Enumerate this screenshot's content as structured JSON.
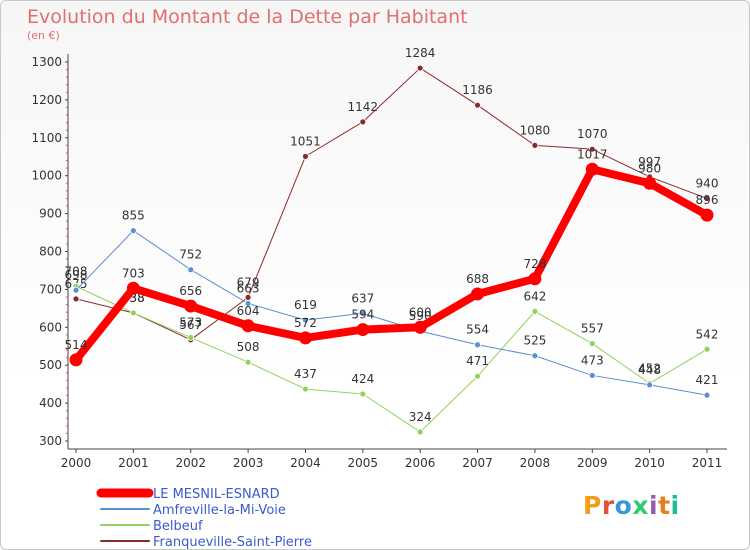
{
  "header": {
    "title": "Evolution du Montant de la Dette par Habitant",
    "subtitle": "(en €)"
  },
  "logo": {
    "text": "Proxiti",
    "colors": [
      "#f39c12",
      "#e74c3c",
      "#3498db",
      "#2ecc71",
      "#9b59b6",
      "#e67e22",
      "#1abc9c"
    ]
  },
  "chart_data": {
    "type": "line",
    "title": "Evolution du Montant de la Dette par Habitant",
    "subtitle": "(en €)",
    "xlabel": "",
    "ylabel": "",
    "x": [
      "2000",
      "2001",
      "2002",
      "2003",
      "2004",
      "2005",
      "2006",
      "2007",
      "2008",
      "2009",
      "2010",
      "2011"
    ],
    "ylim": [
      300,
      1300
    ],
    "yticks": [
      300,
      400,
      500,
      600,
      700,
      800,
      900,
      1000,
      1100,
      1200,
      1300
    ],
    "grid": false,
    "legend_position": "bottom-left",
    "series": [
      {
        "name": "Franqueville-Saint-Pierre",
        "color": "#8b2a2a",
        "width": 1,
        "point_labels": true,
        "values": [
          675,
          638,
          567,
          679,
          1051,
          1142,
          1284,
          1186,
          1080,
          1070,
          997,
          940
        ],
        "labels": [
          "675",
          "638",
          "567",
          "679",
          "1051",
          "1142",
          "1284",
          "1186",
          "1080",
          "1070",
          "997",
          "940"
        ]
      },
      {
        "name": "Belbeuf",
        "color": "#8fd35a",
        "width": 1,
        "point_labels": true,
        "values": [
          708,
          638,
          573,
          508,
          437,
          424,
          324,
          471,
          642,
          557,
          452,
          542
        ],
        "labels": [
          "708",
          "638",
          "573",
          "508",
          "437",
          "424",
          "324",
          "471",
          "642",
          "557",
          "452",
          "542"
        ]
      },
      {
        "name": "Amfreville-la-Mi-Voie",
        "color": "#5b8fd0",
        "width": 1,
        "point_labels": true,
        "values": [
          698,
          855,
          752,
          663,
          619,
          637,
          590,
          554,
          525,
          473,
          448,
          421
        ],
        "labels": [
          "698",
          "855",
          "752",
          "663",
          "619",
          "637",
          "590",
          "554",
          "525",
          "473",
          "448",
          "421"
        ]
      },
      {
        "name": "LE MESNIL-ESNARD",
        "color": "#ff0000",
        "width": 8,
        "point_labels": true,
        "values": [
          514,
          703,
          656,
          604,
          572,
          594,
          600,
          688,
          728,
          1017,
          980,
          896
        ],
        "labels": [
          "514",
          "703",
          "656",
          "604",
          "572",
          "594",
          "600",
          "688",
          "728",
          "1017",
          "980",
          "896"
        ]
      }
    ],
    "legend": [
      {
        "name": "LE MESNIL-ESNARD",
        "color": "#ff0000",
        "thick": true
      },
      {
        "name": "Amfreville-la-Mi-Voie",
        "color": "#5b8fd0",
        "thick": false
      },
      {
        "name": "Belbeuf",
        "color": "#8fd35a",
        "thick": false
      },
      {
        "name": "Franqueville-Saint-Pierre",
        "color": "#8b2a2a",
        "thick": false
      }
    ]
  }
}
